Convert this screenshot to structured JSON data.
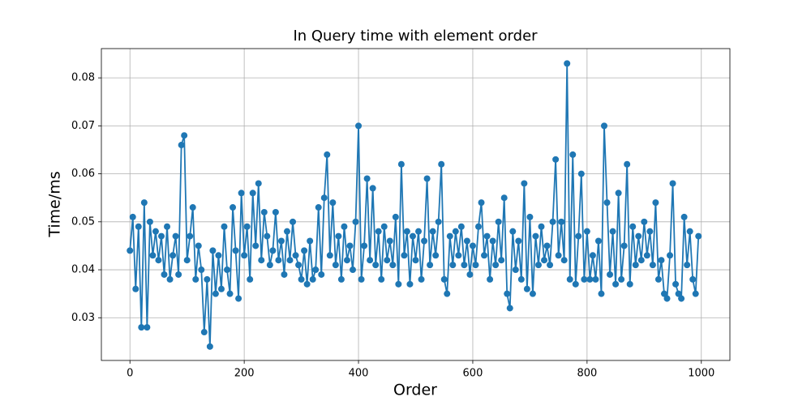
{
  "chart_data": {
    "type": "line",
    "title": "In Query time with element order",
    "x_label": "Order",
    "y_label": "Time/ms",
    "color": "#1f77b4",
    "grid": true,
    "xlim": [
      -50,
      1050
    ],
    "ylim": [
      0.0211,
      0.0861
    ],
    "xticks": [
      0,
      200,
      400,
      600,
      800,
      1000
    ],
    "yticks": [
      0.03,
      0.04,
      0.05,
      0.06,
      0.07,
      0.08
    ],
    "x": [
      0,
      5,
      10,
      15,
      20,
      25,
      30,
      35,
      40,
      45,
      50,
      55,
      60,
      65,
      70,
      75,
      80,
      85,
      90,
      95,
      100,
      105,
      110,
      115,
      120,
      125,
      130,
      135,
      140,
      145,
      150,
      155,
      160,
      165,
      170,
      175,
      180,
      185,
      190,
      195,
      200,
      205,
      210,
      215,
      220,
      225,
      230,
      235,
      240,
      245,
      250,
      255,
      260,
      265,
      270,
      275,
      280,
      285,
      290,
      295,
      300,
      305,
      310,
      315,
      320,
      325,
      330,
      335,
      340,
      345,
      350,
      355,
      360,
      365,
      370,
      375,
      380,
      385,
      390,
      395,
      400,
      405,
      410,
      415,
      420,
      425,
      430,
      435,
      440,
      445,
      450,
      455,
      460,
      465,
      470,
      475,
      480,
      485,
      490,
      495,
      500,
      505,
      510,
      515,
      520,
      525,
      530,
      535,
      540,
      545,
      550,
      555,
      560,
      565,
      570,
      575,
      580,
      585,
      590,
      595,
      600,
      605,
      610,
      615,
      620,
      625,
      630,
      635,
      640,
      645,
      650,
      655,
      660,
      665,
      670,
      675,
      680,
      685,
      690,
      695,
      700,
      705,
      710,
      715,
      720,
      725,
      730,
      735,
      740,
      745,
      750,
      755,
      760,
      765,
      770,
      775,
      780,
      785,
      790,
      795,
      800,
      805,
      810,
      815,
      820,
      825,
      830,
      835,
      840,
      845,
      850,
      855,
      860,
      865,
      870,
      875,
      880,
      885,
      890,
      895,
      900,
      905,
      910,
      915,
      920,
      925,
      930,
      935,
      940,
      945,
      950,
      955,
      960,
      965,
      970,
      975,
      980,
      985,
      990,
      995
    ],
    "values": [
      0.044,
      0.051,
      0.036,
      0.049,
      0.028,
      0.054,
      0.028,
      0.05,
      0.043,
      0.048,
      0.042,
      0.047,
      0.039,
      0.049,
      0.038,
      0.043,
      0.047,
      0.039,
      0.066,
      0.068,
      0.042,
      0.047,
      0.053,
      0.038,
      0.045,
      0.04,
      0.027,
      0.038,
      0.024,
      0.044,
      0.035,
      0.043,
      0.036,
      0.049,
      0.04,
      0.035,
      0.053,
      0.044,
      0.034,
      0.056,
      0.043,
      0.049,
      0.038,
      0.056,
      0.045,
      0.058,
      0.042,
      0.052,
      0.047,
      0.041,
      0.044,
      0.052,
      0.042,
      0.046,
      0.039,
      0.048,
      0.042,
      0.05,
      0.043,
      0.041,
      0.038,
      0.044,
      0.037,
      0.046,
      0.038,
      0.04,
      0.053,
      0.039,
      0.055,
      0.064,
      0.043,
      0.054,
      0.041,
      0.047,
      0.038,
      0.049,
      0.042,
      0.045,
      0.04,
      0.05,
      0.07,
      0.038,
      0.045,
      0.059,
      0.042,
      0.057,
      0.041,
      0.048,
      0.038,
      0.049,
      0.042,
      0.046,
      0.041,
      0.051,
      0.037,
      0.062,
      0.043,
      0.048,
      0.037,
      0.047,
      0.042,
      0.048,
      0.038,
      0.046,
      0.059,
      0.041,
      0.048,
      0.043,
      0.05,
      0.062,
      0.038,
      0.035,
      0.047,
      0.041,
      0.048,
      0.043,
      0.049,
      0.041,
      0.046,
      0.039,
      0.045,
      0.041,
      0.049,
      0.054,
      0.043,
      0.047,
      0.038,
      0.046,
      0.041,
      0.05,
      0.042,
      0.055,
      0.035,
      0.032,
      0.048,
      0.04,
      0.046,
      0.038,
      0.058,
      0.036,
      0.051,
      0.035,
      0.047,
      0.041,
      0.049,
      0.042,
      0.045,
      0.041,
      0.05,
      0.063,
      0.043,
      0.05,
      0.042,
      0.083,
      0.038,
      0.064,
      0.037,
      0.047,
      0.06,
      0.038,
      0.048,
      0.038,
      0.043,
      0.038,
      0.046,
      0.035,
      0.07,
      0.054,
      0.039,
      0.048,
      0.037,
      0.056,
      0.038,
      0.045,
      0.062,
      0.037,
      0.049,
      0.041,
      0.047,
      0.042,
      0.05,
      0.043,
      0.048,
      0.041,
      0.054,
      0.038,
      0.042,
      0.035,
      0.034,
      0.043,
      0.058,
      0.037,
      0.035,
      0.034,
      0.051,
      0.041,
      0.048,
      0.038,
      0.035,
      0.047
    ]
  }
}
